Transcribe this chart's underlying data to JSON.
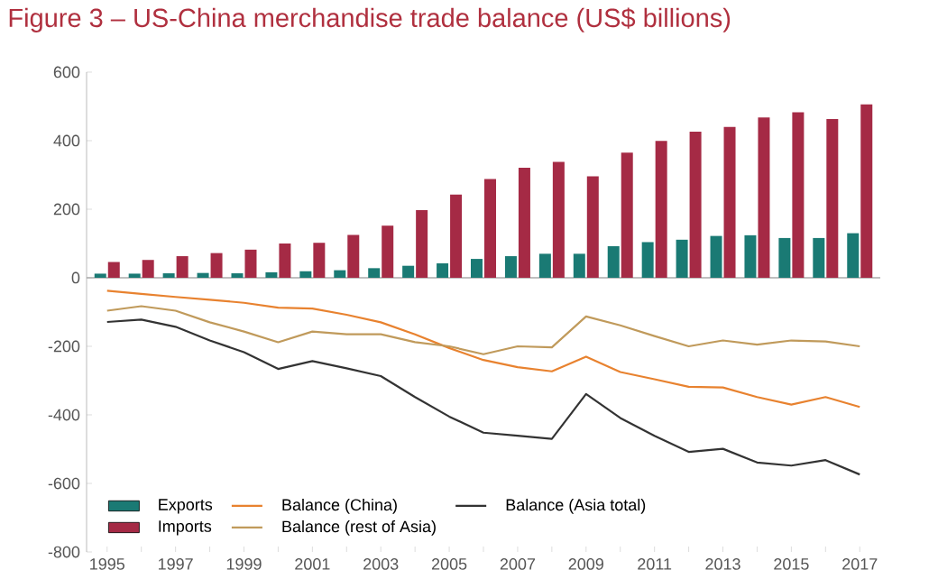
{
  "chart_data": {
    "type": "bar",
    "title": "Figure 3 – US-China merchandise trade balance (US$ billions)",
    "categories": [
      "1995",
      null,
      "1997",
      null,
      "1999",
      null,
      "2001",
      null,
      "2003",
      null,
      "2005",
      null,
      "2007",
      null,
      "2009",
      null,
      "2011",
      null,
      "2013",
      null,
      "2015",
      null,
      "2017"
    ],
    "series": [
      {
        "name": "Exports",
        "color": "#1a7a74",
        "values": [
          12,
          12,
          13,
          14,
          13,
          16,
          19,
          22,
          28,
          35,
          42,
          55,
          63,
          70,
          70,
          92,
          104,
          111,
          122,
          124,
          116,
          116,
          130
        ]
      },
      {
        "name": "Imports",
        "color": "#a52a45",
        "values": [
          46,
          52,
          63,
          72,
          82,
          100,
          102,
          125,
          152,
          197,
          243,
          288,
          321,
          338,
          296,
          365,
          399,
          426,
          440,
          468,
          483,
          463,
          506
        ]
      },
      {
        "name": "Balance (China)",
        "type": "line",
        "color": "#e8822f",
        "values": [
          -38,
          -47,
          -56,
          -64,
          -73,
          -87,
          -90,
          -108,
          -130,
          -165,
          -205,
          -240,
          -261,
          -273,
          -230,
          -275,
          -296,
          -318,
          -320,
          -348,
          -370,
          -348,
          -377
        ]
      },
      {
        "name": "Balance (rest of Asia)",
        "type": "line",
        "color": "#c09a5b",
        "values": [
          -96,
          -83,
          -96,
          -130,
          -157,
          -188,
          -157,
          -165,
          -165,
          -188,
          -200,
          -223,
          -200,
          -203,
          -113,
          -139,
          -170,
          -200,
          -183,
          -195,
          -183,
          -186,
          -200
        ]
      },
      {
        "name": "Balance (Asia total)",
        "type": "line",
        "color": "#333333",
        "values": [
          -129,
          -122,
          -143,
          -183,
          -217,
          -266,
          -243,
          -264,
          -287,
          -348,
          -405,
          -452,
          -461,
          -470,
          -339,
          -409,
          -461,
          -508,
          -499,
          -539,
          -548,
          -532,
          -574
        ]
      }
    ],
    "ylim": [
      -800,
      600
    ],
    "yticks": [
      -800,
      -600,
      -400,
      -200,
      0,
      200,
      400,
      600
    ],
    "ref_lines": [
      {
        "axis": "y",
        "value": 0,
        "color": "#aaaaaa"
      }
    ],
    "legend": "bottom left",
    "grid": false
  }
}
